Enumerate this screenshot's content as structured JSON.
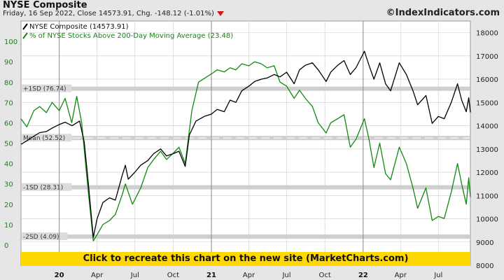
{
  "header": {
    "title": "NYSE Composite",
    "subtitle": "Friday, 16 Sep 2022, Close 14573.91, Chg. -148.12 (-1.01%)",
    "site": "©IndexIndicators.com"
  },
  "banner": {
    "label": "Click to recreate this chart on the new site (MarketCharts.com)"
  },
  "chart_data": {
    "type": "line",
    "legend_placement": "top-left",
    "grid": true,
    "colors": {
      "index": "#000000",
      "pct": "#118811",
      "band": "#cfcfcf",
      "banner": "#ffd800",
      "background": "#e6e6e6",
      "plot": "#ffffff"
    },
    "x_axis": {
      "range": [
        "2019-10-01",
        "2022-09-16"
      ],
      "year_ticks": [
        {
          "label": "20",
          "date": "2020-01-01"
        },
        {
          "label": "21",
          "date": "2021-01-01"
        },
        {
          "label": "22",
          "date": "2022-01-01"
        }
      ],
      "month_ticks": [
        {
          "label": "Apr",
          "date": "2020-04-01"
        },
        {
          "label": "Jul",
          "date": "2020-07-01"
        },
        {
          "label": "Oct",
          "date": "2020-10-01"
        },
        {
          "label": "Apr",
          "date": "2021-04-01"
        },
        {
          "label": "Jul",
          "date": "2021-07-01"
        },
        {
          "label": "Oct",
          "date": "2021-10-01"
        },
        {
          "label": "Apr",
          "date": "2022-04-01"
        },
        {
          "label": "Jul",
          "date": "2022-07-01"
        }
      ]
    },
    "left_axis": {
      "range": [
        -10,
        110
      ],
      "ticks": [
        0,
        10,
        20,
        30,
        40,
        50,
        60,
        70,
        80,
        90,
        100
      ]
    },
    "right_axis": {
      "range": [
        8000,
        18500
      ],
      "ticks": [
        8000,
        9000,
        10000,
        11000,
        12000,
        13000,
        14000,
        15000,
        16000,
        17000,
        18000
      ]
    },
    "bands": [
      {
        "label": "+1SD (76.74)",
        "value": 76.74
      },
      {
        "label": "Mean (52.52)",
        "value": 52.52
      },
      {
        "label": "-1SD (28.31)",
        "value": 28.31
      },
      {
        "label": "-2SD (4.09)",
        "value": 4.09
      }
    ],
    "series": [
      {
        "name": "NYSE Composite (14573.91)",
        "axis": "right",
        "points": [
          [
            "2019-10-01",
            13200
          ],
          [
            "2019-10-15",
            13350
          ],
          [
            "2019-11-01",
            13550
          ],
          [
            "2019-11-15",
            13700
          ],
          [
            "2019-12-01",
            13750
          ],
          [
            "2019-12-15",
            13900
          ],
          [
            "2020-01-01",
            14050
          ],
          [
            "2020-01-15",
            14150
          ],
          [
            "2020-02-01",
            14000
          ],
          [
            "2020-02-19",
            14200
          ],
          [
            "2020-03-01",
            13300
          ],
          [
            "2020-03-10",
            11700
          ],
          [
            "2020-03-23",
            9200
          ],
          [
            "2020-04-01",
            10000
          ],
          [
            "2020-04-15",
            10700
          ],
          [
            "2020-05-01",
            10900
          ],
          [
            "2020-05-15",
            10800
          ],
          [
            "2020-06-01",
            11900
          ],
          [
            "2020-06-08",
            12300
          ],
          [
            "2020-06-15",
            11700
          ],
          [
            "2020-07-01",
            12000
          ],
          [
            "2020-07-15",
            12300
          ],
          [
            "2020-08-01",
            12500
          ],
          [
            "2020-08-15",
            12800
          ],
          [
            "2020-09-01",
            13000
          ],
          [
            "2020-09-15",
            12700
          ],
          [
            "2020-10-01",
            12800
          ],
          [
            "2020-10-15",
            12900
          ],
          [
            "2020-10-30",
            12250
          ],
          [
            "2020-11-09",
            13600
          ],
          [
            "2020-11-25",
            14200
          ],
          [
            "2020-12-15",
            14400
          ],
          [
            "2021-01-01",
            14500
          ],
          [
            "2021-01-15",
            14700
          ],
          [
            "2021-02-01",
            14600
          ],
          [
            "2021-02-15",
            15100
          ],
          [
            "2021-03-01",
            15000
          ],
          [
            "2021-03-15",
            15500
          ],
          [
            "2021-04-01",
            15700
          ],
          [
            "2021-04-15",
            15900
          ],
          [
            "2021-05-01",
            16000
          ],
          [
            "2021-05-15",
            16050
          ],
          [
            "2021-06-01",
            16200
          ],
          [
            "2021-06-15",
            16100
          ],
          [
            "2021-07-01",
            16300
          ],
          [
            "2021-07-19",
            15800
          ],
          [
            "2021-08-01",
            16400
          ],
          [
            "2021-08-15",
            16600
          ],
          [
            "2021-09-01",
            16700
          ],
          [
            "2021-09-15",
            16400
          ],
          [
            "2021-10-04",
            15900
          ],
          [
            "2021-10-15",
            16300
          ],
          [
            "2021-11-01",
            16600
          ],
          [
            "2021-11-16",
            16800
          ],
          [
            "2021-12-01",
            16200
          ],
          [
            "2021-12-15",
            16500
          ],
          [
            "2022-01-04",
            17200
          ],
          [
            "2022-01-15",
            16600
          ],
          [
            "2022-01-27",
            16000
          ],
          [
            "2022-02-10",
            16700
          ],
          [
            "2022-02-24",
            15800
          ],
          [
            "2022-03-08",
            15500
          ],
          [
            "2022-03-29",
            16700
          ],
          [
            "2022-04-15",
            16200
          ],
          [
            "2022-05-01",
            15500
          ],
          [
            "2022-05-12",
            14900
          ],
          [
            "2022-06-01",
            15300
          ],
          [
            "2022-06-16",
            14100
          ],
          [
            "2022-07-01",
            14400
          ],
          [
            "2022-07-15",
            14300
          ],
          [
            "2022-08-01",
            15000
          ],
          [
            "2022-08-16",
            15800
          ],
          [
            "2022-08-26",
            15100
          ],
          [
            "2022-09-06",
            14600
          ],
          [
            "2022-09-12",
            15200
          ],
          [
            "2022-09-16",
            14573.91
          ]
        ]
      },
      {
        "name": "% of NYSE Stocks Above 200-Day Moving Average (23.48)",
        "axis": "left",
        "points": [
          [
            "2019-10-01",
            62
          ],
          [
            "2019-10-15",
            58
          ],
          [
            "2019-11-01",
            66
          ],
          [
            "2019-11-15",
            68
          ],
          [
            "2019-12-01",
            65
          ],
          [
            "2019-12-15",
            70
          ],
          [
            "2020-01-01",
            66
          ],
          [
            "2020-01-15",
            72
          ],
          [
            "2020-01-31",
            60
          ],
          [
            "2020-02-12",
            73
          ],
          [
            "2020-02-24",
            60
          ],
          [
            "2020-03-09",
            30
          ],
          [
            "2020-03-23",
            2
          ],
          [
            "2020-04-01",
            5
          ],
          [
            "2020-04-15",
            10
          ],
          [
            "2020-05-01",
            12
          ],
          [
            "2020-05-15",
            15
          ],
          [
            "2020-06-01",
            25
          ],
          [
            "2020-06-08",
            30
          ],
          [
            "2020-06-25",
            20
          ],
          [
            "2020-07-15",
            28
          ],
          [
            "2020-08-01",
            38
          ],
          [
            "2020-08-15",
            42
          ],
          [
            "2020-09-01",
            46
          ],
          [
            "2020-09-15",
            42
          ],
          [
            "2020-10-01",
            45
          ],
          [
            "2020-10-15",
            48
          ],
          [
            "2020-10-30",
            40
          ],
          [
            "2020-11-15",
            66
          ],
          [
            "2020-12-01",
            80
          ],
          [
            "2021-01-01",
            84
          ],
          [
            "2021-01-15",
            86
          ],
          [
            "2021-02-01",
            85
          ],
          [
            "2021-02-15",
            87
          ],
          [
            "2021-03-01",
            86
          ],
          [
            "2021-03-15",
            89
          ],
          [
            "2021-04-01",
            88
          ],
          [
            "2021-04-15",
            90
          ],
          [
            "2021-05-01",
            89
          ],
          [
            "2021-05-15",
            87
          ],
          [
            "2021-06-01",
            88
          ],
          [
            "2021-06-15",
            80
          ],
          [
            "2021-07-01",
            78
          ],
          [
            "2021-07-19",
            72
          ],
          [
            "2021-08-01",
            76
          ],
          [
            "2021-08-15",
            72
          ],
          [
            "2021-09-01",
            68
          ],
          [
            "2021-09-15",
            60
          ],
          [
            "2021-10-04",
            55
          ],
          [
            "2021-10-15",
            60
          ],
          [
            "2021-11-01",
            62
          ],
          [
            "2021-11-16",
            64
          ],
          [
            "2021-12-01",
            48
          ],
          [
            "2021-12-15",
            52
          ],
          [
            "2022-01-04",
            62
          ],
          [
            "2022-01-15",
            52
          ],
          [
            "2022-01-27",
            38
          ],
          [
            "2022-02-10",
            50
          ],
          [
            "2022-02-24",
            35
          ],
          [
            "2022-03-08",
            32
          ],
          [
            "2022-03-29",
            48
          ],
          [
            "2022-04-15",
            40
          ],
          [
            "2022-05-01",
            28
          ],
          [
            "2022-05-12",
            18
          ],
          [
            "2022-06-01",
            28
          ],
          [
            "2022-06-16",
            12
          ],
          [
            "2022-07-01",
            14
          ],
          [
            "2022-07-15",
            13
          ],
          [
            "2022-08-01",
            26
          ],
          [
            "2022-08-16",
            40
          ],
          [
            "2022-08-26",
            30
          ],
          [
            "2022-09-06",
            20
          ],
          [
            "2022-09-12",
            33
          ],
          [
            "2022-09-16",
            23.48
          ]
        ]
      }
    ]
  }
}
